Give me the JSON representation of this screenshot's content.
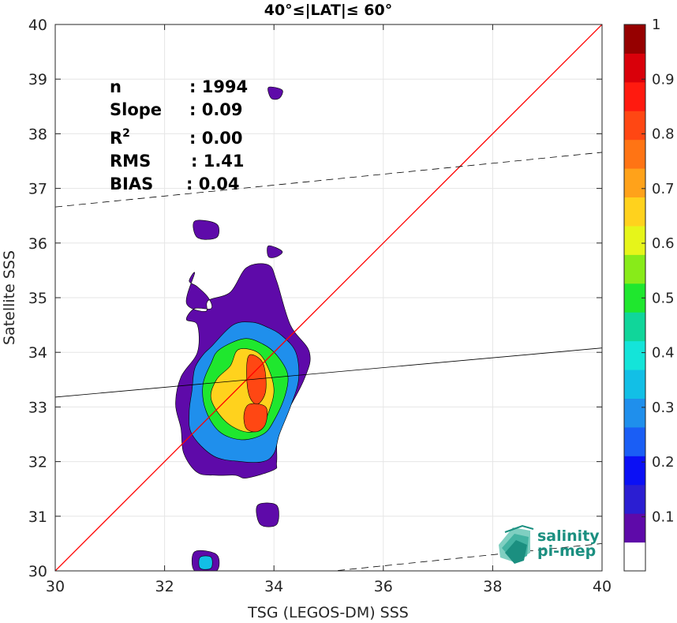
{
  "chart_data": {
    "type": "heatmap",
    "title": "40°≤|LAT|≤ 60°",
    "xlabel": "TSG (LEGOS-DM) SSS",
    "ylabel": "Satellite SSS",
    "xlim": [
      30,
      40
    ],
    "ylim": [
      30,
      40
    ],
    "xticks": [
      "30",
      "32",
      "34",
      "36",
      "38",
      "40"
    ],
    "yticks": [
      "30",
      "31",
      "32",
      "33",
      "34",
      "35",
      "36",
      "37",
      "38",
      "39",
      "40"
    ],
    "grid": true,
    "stats": [
      {
        "name": "n",
        "value": ": 1994"
      },
      {
        "name": "Slope",
        "value": ": 0.09"
      },
      {
        "name": "R",
        "sup": "2",
        "value": ": 0.00"
      },
      {
        "name": "RMS",
        "value": ": 1.41"
      },
      {
        "name": "BIAS",
        "value": ": 0.04"
      }
    ],
    "lines": {
      "identity": {
        "slope": 1,
        "intercept": 0,
        "color": "#ff0000"
      },
      "regression": {
        "slope": 0.09,
        "intercept_at_30": 33.18,
        "value_at_40": 34.08,
        "color": "#000000"
      },
      "upper_bound": {
        "y_at_30": 36.66,
        "y_at_40": 37.66,
        "dash": true
      },
      "lower_bound": {
        "y_at_30": 29.48,
        "y_at_40": 30.5,
        "dash": true
      }
    },
    "density_contours": [
      {
        "level": 0.05,
        "x": [
          32.45,
          32.55,
          32.4,
          32.75,
          32.8,
          33.2,
          33.5,
          33.9,
          34.05,
          34.3,
          34.65,
          34.55,
          34.1,
          34.05,
          34.0,
          33.5,
          33.3,
          32.95,
          32.6,
          32.35,
          32.3,
          32.2,
          32.3,
          32.6,
          32.6,
          32.4,
          32.55,
          32.85,
          32.8,
          32.6,
          32.45
        ],
        "y": [
          35.3,
          35.45,
          34.9,
          34.75,
          34.95,
          35.1,
          35.55,
          35.6,
          35.3,
          34.5,
          34.0,
          33.5,
          32.6,
          32.0,
          31.85,
          31.7,
          31.75,
          31.75,
          31.8,
          32.15,
          32.6,
          33.05,
          33.55,
          34.0,
          34.5,
          34.6,
          34.8,
          34.8,
          35.0,
          35.2,
          35.3
        ]
      },
      {
        "level": 0.25,
        "x": [
          32.85,
          33.25,
          33.6,
          33.9,
          34.15,
          34.4,
          34.45,
          34.3,
          34.1,
          34.0,
          33.8,
          33.4,
          32.9,
          32.5,
          32.45,
          32.5,
          32.55,
          32.7,
          32.85
        ],
        "y": [
          34.1,
          34.5,
          34.55,
          34.45,
          34.3,
          34.0,
          33.5,
          33.0,
          32.5,
          32.15,
          32.0,
          32.0,
          32.1,
          32.5,
          32.9,
          33.3,
          33.7,
          33.95,
          34.1
        ]
      },
      {
        "level": 0.45,
        "x": [
          33.0,
          33.45,
          33.8,
          34.05,
          34.25,
          34.2,
          34.0,
          33.8,
          33.4,
          33.0,
          32.75,
          32.7,
          32.85,
          33.0
        ],
        "y": [
          34.05,
          34.25,
          34.15,
          33.95,
          33.6,
          33.2,
          32.75,
          32.5,
          32.4,
          32.55,
          32.95,
          33.4,
          33.8,
          34.05
        ]
      },
      {
        "level": 0.6,
        "x": [
          33.35,
          33.7,
          33.9,
          34.0,
          33.9,
          33.75,
          33.45,
          33.1,
          32.85,
          32.95,
          33.2,
          33.35
        ],
        "y": [
          34.05,
          34.0,
          33.7,
          33.3,
          32.9,
          32.6,
          32.55,
          32.75,
          33.15,
          33.5,
          33.75,
          34.05
        ]
      },
      {
        "level": 0.8,
        "x": [
          33.55,
          33.8,
          33.85,
          33.7,
          33.55,
          33.5,
          33.55
        ],
        "y": [
          33.95,
          33.8,
          33.3,
          33.05,
          33.2,
          33.6,
          33.95
        ]
      },
      {
        "level": 0.8,
        "x": [
          33.55,
          33.85,
          33.85,
          33.7,
          33.5,
          33.45,
          33.55
        ],
        "y": [
          33.05,
          33.0,
          32.7,
          32.55,
          32.6,
          32.85,
          33.05
        ]
      },
      {
        "level": 0.05,
        "x": [
          32.55,
          32.95,
          32.95,
          32.6,
          32.55
        ],
        "y": [
          36.4,
          36.35,
          36.1,
          36.1,
          36.4
        ]
      },
      {
        "level": 0.05,
        "x": [
          33.9,
          34.15,
          34.1,
          33.95,
          33.9
        ],
        "y": [
          38.85,
          38.8,
          38.65,
          38.65,
          38.85
        ]
      },
      {
        "level": 0.05,
        "x": [
          33.9,
          34.15,
          34.05,
          33.9,
          33.9
        ],
        "y": [
          35.95,
          35.85,
          35.75,
          35.75,
          35.95
        ]
      },
      {
        "level": 0.05,
        "x": [
          33.7,
          34.05,
          34.05,
          33.75,
          33.7
        ],
        "y": [
          31.2,
          31.2,
          30.85,
          30.85,
          31.2
        ]
      },
      {
        "level": 0.05,
        "x": [
          32.55,
          32.95,
          32.95,
          32.55,
          32.55
        ],
        "y": [
          30.35,
          30.3,
          30.0,
          30.0,
          30.35
        ]
      },
      {
        "level": 0.3,
        "x": [
          32.65,
          32.85,
          32.85,
          32.65,
          32.65
        ],
        "y": [
          30.25,
          30.25,
          30.05,
          30.05,
          30.25
        ]
      }
    ],
    "colorbar": {
      "ticks": [
        "0.1",
        "0.2",
        "0.3",
        "0.4",
        "0.5",
        "0.6",
        "0.7",
        "0.8",
        "0.9",
        "1"
      ],
      "colors": [
        "#ffffff",
        "#5e0aa9",
        "#2b1ed2",
        "#0b10f5",
        "#1a5ef5",
        "#1f8fec",
        "#12bfe6",
        "#14e4d9",
        "#10d69a",
        "#1fe72e",
        "#88eb19",
        "#e6f51a",
        "#ffd21d",
        "#ffa21a",
        "#ff7414",
        "#ff4713",
        "#ff1a0f",
        "#d9000a",
        "#960000"
      ]
    }
  },
  "logo": {
    "line1": "salinity",
    "line2": "pi-mep"
  }
}
